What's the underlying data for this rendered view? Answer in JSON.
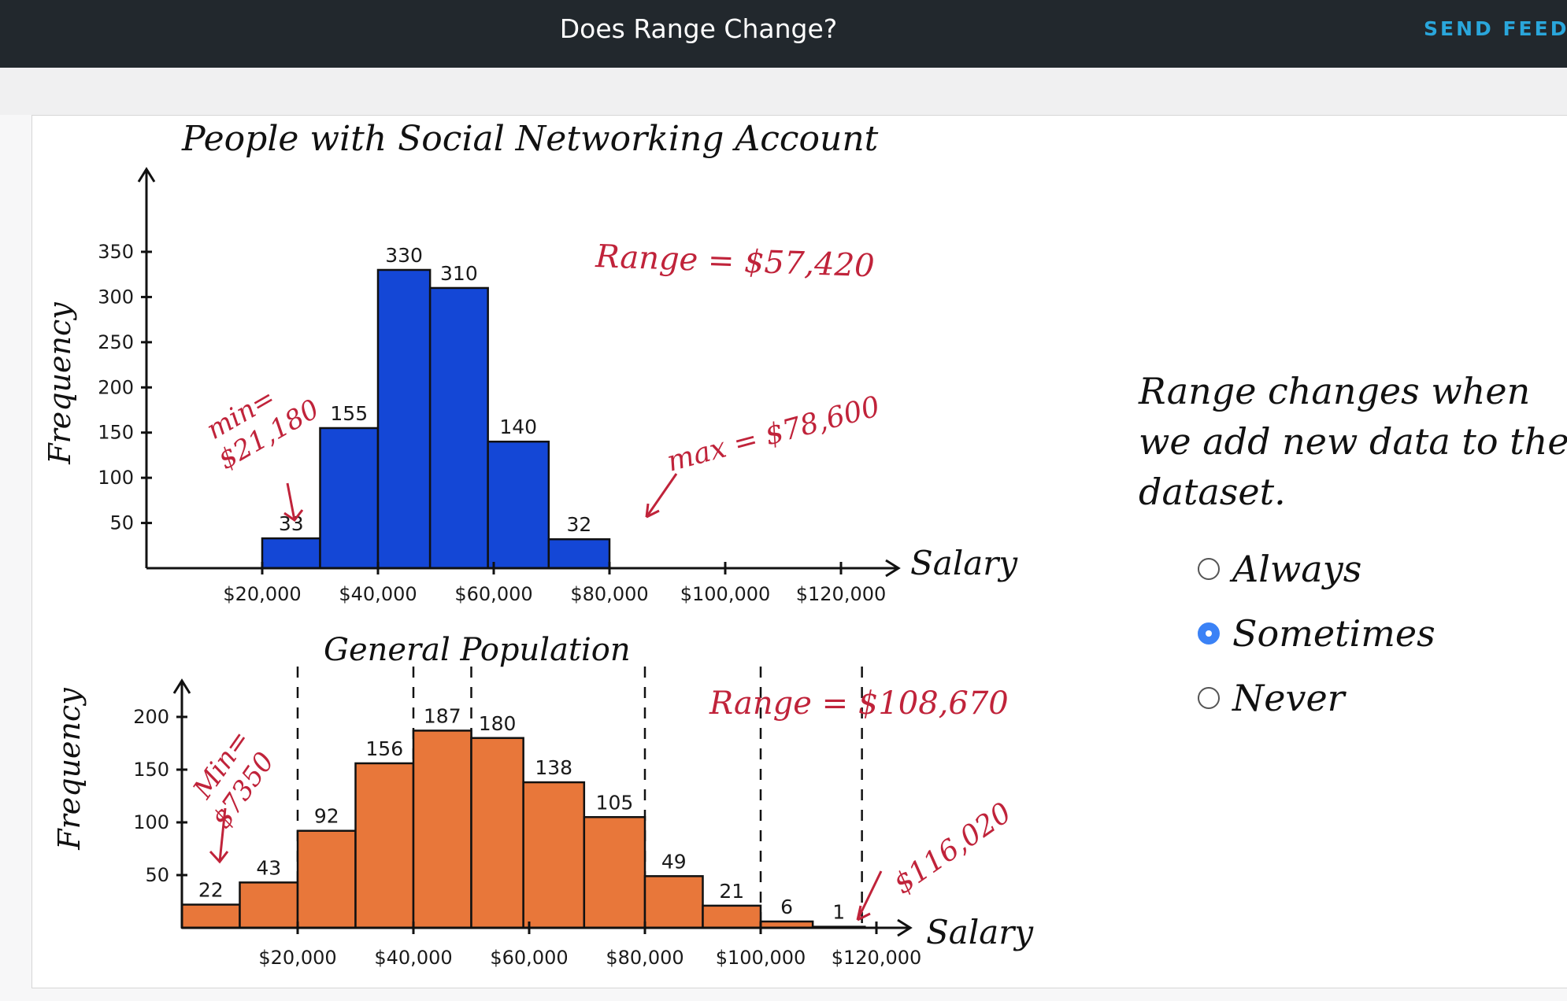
{
  "header": {
    "title": "Does Range Change?",
    "feedback_label": "SEND FEEDB"
  },
  "question": {
    "text": "Range changes when we add new data to the dataset.",
    "options": [
      {
        "label": "Always",
        "selected": false
      },
      {
        "label": "Sometimes",
        "selected": true
      },
      {
        "label": "Never",
        "selected": false
      }
    ]
  },
  "chart_data": [
    {
      "type": "bar",
      "title": "People with Social Networking Account",
      "xlabel": "Salary",
      "ylabel": "Frequency",
      "ylim": [
        0,
        350
      ],
      "yticks": [
        50,
        100,
        150,
        200,
        250,
        300,
        350
      ],
      "ytick_labels": [
        "50",
        "100",
        "150",
        "200",
        "250",
        "300",
        "350"
      ],
      "xticks": [
        20000,
        40000,
        60000,
        80000,
        100000,
        120000
      ],
      "xtick_labels": [
        "$20,000",
        "$40,000",
        "$60,000",
        "$80,000",
        "$100,000",
        "$120,000"
      ],
      "bars": [
        {
          "start": 20000,
          "end": 30000,
          "value": 33
        },
        {
          "start": 30000,
          "end": 40000,
          "value": 155
        },
        {
          "start": 40000,
          "end": 49000,
          "value": 330
        },
        {
          "start": 49000,
          "end": 59000,
          "value": 310
        },
        {
          "start": 59000,
          "end": 69500,
          "value": 140
        },
        {
          "start": 69500,
          "end": 80000,
          "value": 32
        }
      ],
      "annotations": {
        "min": [
          "min=",
          "$21,180"
        ],
        "max": "max = $78,600",
        "range": "Range = $57,420"
      },
      "color": "#1447d6"
    },
    {
      "type": "bar",
      "title": "General Population",
      "xlabel": "Salary",
      "ylabel": "Frequency",
      "ylim": [
        0,
        200
      ],
      "yticks": [
        50,
        100,
        150,
        200
      ],
      "ytick_labels": [
        "50",
        "100",
        "150",
        "200"
      ],
      "xticks": [
        20000,
        40000,
        60000,
        80000,
        100000,
        120000
      ],
      "xtick_labels": [
        "$20,000",
        "$40,000",
        "$60,000",
        "$80,000",
        "$100,000",
        "$120,000"
      ],
      "bars": [
        {
          "start": 0,
          "end": 10000,
          "value": 22
        },
        {
          "start": 10000,
          "end": 20000,
          "value": 43
        },
        {
          "start": 20000,
          "end": 30000,
          "value": 92
        },
        {
          "start": 30000,
          "end": 40000,
          "value": 156
        },
        {
          "start": 40000,
          "end": 50000,
          "value": 187
        },
        {
          "start": 50000,
          "end": 59000,
          "value": 180
        },
        {
          "start": 59000,
          "end": 69500,
          "value": 138
        },
        {
          "start": 69500,
          "end": 80000,
          "value": 105
        },
        {
          "start": 80000,
          "end": 90000,
          "value": 49
        },
        {
          "start": 90000,
          "end": 100000,
          "value": 21
        },
        {
          "start": 100000,
          "end": 109000,
          "value": 6
        },
        {
          "start": 109000,
          "end": 118000,
          "value": 1
        }
      ],
      "annotations": {
        "min": [
          "Min=",
          "$7350"
        ],
        "max": "$116,020",
        "range": "Range = $108,670"
      },
      "color": "#e8773a"
    }
  ]
}
